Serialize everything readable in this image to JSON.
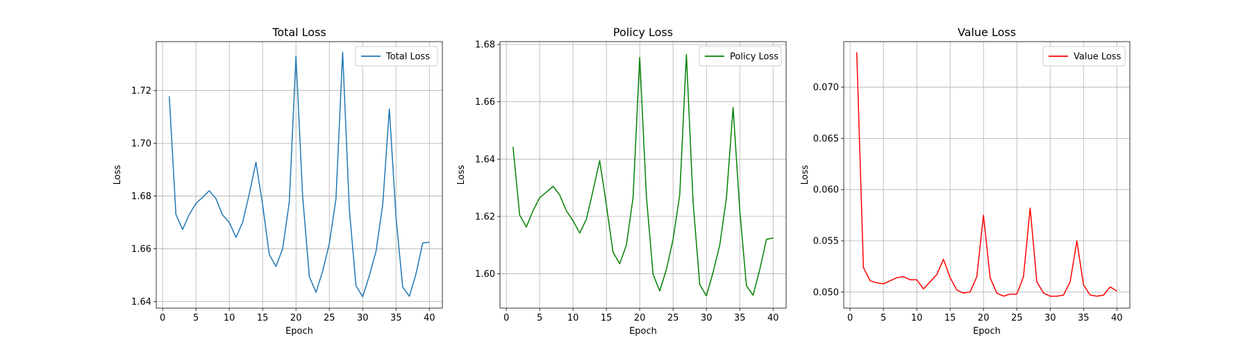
{
  "chart_data": [
    {
      "type": "line",
      "title": "Total Loss",
      "xlabel": "Epoch",
      "ylabel": "Loss",
      "xlim": [
        -0.95,
        41.95
      ],
      "ylim": [
        1.6375,
        1.7385
      ],
      "xticks": [
        0,
        5,
        10,
        15,
        20,
        25,
        30,
        35,
        40
      ],
      "xtick_labels": [
        "0",
        "5",
        "10",
        "15",
        "20",
        "25",
        "30",
        "35",
        "40"
      ],
      "yticks": [
        1.64,
        1.66,
        1.68,
        1.7,
        1.72
      ],
      "ytick_labels": [
        "1.64",
        "1.66",
        "1.68",
        "1.70",
        "1.72"
      ],
      "grid": true,
      "legend": "upper-right",
      "series": [
        {
          "name": "Total Loss",
          "color": "#1f77b4",
          "x": [
            1,
            2,
            3,
            4,
            5,
            6,
            7,
            8,
            9,
            10,
            11,
            12,
            13,
            14,
            15,
            16,
            17,
            18,
            19,
            20,
            21,
            22,
            23,
            24,
            25,
            26,
            27,
            28,
            29,
            30,
            31,
            32,
            33,
            34,
            35,
            36,
            37,
            38,
            39,
            40
          ],
          "y": [
            1.7178,
            1.673,
            1.6673,
            1.673,
            1.6772,
            1.6795,
            1.682,
            1.679,
            1.6728,
            1.67,
            1.6643,
            1.67,
            1.6808,
            1.6928,
            1.6767,
            1.6578,
            1.6533,
            1.66,
            1.6778,
            1.733,
            1.68,
            1.6495,
            1.6435,
            1.6515,
            1.662,
            1.679,
            1.7345,
            1.675,
            1.646,
            1.6418,
            1.6498,
            1.659,
            1.6765,
            1.713,
            1.672,
            1.6455,
            1.642,
            1.6505,
            1.6622,
            1.6625
          ]
        }
      ]
    },
    {
      "type": "line",
      "title": "Policy Loss",
      "xlabel": "Epoch",
      "ylabel": "Loss",
      "xlim": [
        -0.95,
        41.95
      ],
      "ylim": [
        1.588,
        1.681
      ],
      "xticks": [
        0,
        5,
        10,
        15,
        20,
        25,
        30,
        35,
        40
      ],
      "xtick_labels": [
        "0",
        "5",
        "10",
        "15",
        "20",
        "25",
        "30",
        "35",
        "40"
      ],
      "yticks": [
        1.6,
        1.62,
        1.64,
        1.66,
        1.68
      ],
      "ytick_labels": [
        "1.60",
        "1.62",
        "1.64",
        "1.66",
        "1.68"
      ],
      "grid": true,
      "legend": "upper-right",
      "series": [
        {
          "name": "Policy Loss",
          "color": "#008000",
          "x": [
            1,
            2,
            3,
            4,
            5,
            6,
            7,
            8,
            9,
            10,
            11,
            12,
            13,
            14,
            15,
            16,
            17,
            18,
            19,
            20,
            21,
            22,
            23,
            24,
            25,
            26,
            27,
            28,
            29,
            30,
            31,
            32,
            33,
            34,
            35,
            36,
            37,
            38,
            39,
            40
          ],
          "y": [
            1.6443,
            1.6205,
            1.6163,
            1.622,
            1.6265,
            1.6285,
            1.6305,
            1.6275,
            1.622,
            1.6185,
            1.6142,
            1.619,
            1.629,
            1.6395,
            1.624,
            1.6075,
            1.6035,
            1.61,
            1.6265,
            1.6755,
            1.627,
            1.5998,
            1.594,
            1.6015,
            1.612,
            1.6275,
            1.6765,
            1.625,
            1.5962,
            1.5923,
            1.6005,
            1.61,
            1.6265,
            1.658,
            1.6222,
            1.5958,
            1.5925,
            1.6015,
            1.612,
            1.6125
          ]
        }
      ]
    },
    {
      "type": "line",
      "title": "Value Loss",
      "xlabel": "Epoch",
      "ylabel": "Loss",
      "xlim": [
        -0.95,
        41.95
      ],
      "ylim": [
        0.04843,
        0.07444
      ],
      "xticks": [
        0,
        5,
        10,
        15,
        20,
        25,
        30,
        35,
        40
      ],
      "xtick_labels": [
        "0",
        "5",
        "10",
        "15",
        "20",
        "25",
        "30",
        "35",
        "40"
      ],
      "yticks": [
        0.05,
        0.055,
        0.06,
        0.065,
        0.07
      ],
      "ytick_labels": [
        "0.050",
        "0.055",
        "0.060",
        "0.065",
        "0.070"
      ],
      "grid": true,
      "legend": "upper-right",
      "series": [
        {
          "name": "Value Loss",
          "color": "#ff0000",
          "x": [
            1,
            2,
            3,
            4,
            5,
            6,
            7,
            8,
            9,
            10,
            11,
            12,
            13,
            14,
            15,
            16,
            17,
            18,
            19,
            20,
            21,
            22,
            23,
            24,
            25,
            26,
            27,
            28,
            29,
            30,
            31,
            32,
            33,
            34,
            35,
            36,
            37,
            38,
            39,
            40
          ],
          "y": [
            0.0734,
            0.0524,
            0.0511,
            0.0509,
            0.0508,
            0.0511,
            0.0514,
            0.0515,
            0.0512,
            0.0512,
            0.0503,
            0.051,
            0.0517,
            0.0532,
            0.0514,
            0.0502,
            0.0499,
            0.05,
            0.0515,
            0.0575,
            0.0514,
            0.0499,
            0.0496,
            0.0498,
            0.0498,
            0.0515,
            0.0582,
            0.051,
            0.0499,
            0.0496,
            0.0496,
            0.0497,
            0.051,
            0.055,
            0.0507,
            0.0497,
            0.0496,
            0.0497,
            0.0505,
            0.0501
          ]
        }
      ]
    }
  ]
}
